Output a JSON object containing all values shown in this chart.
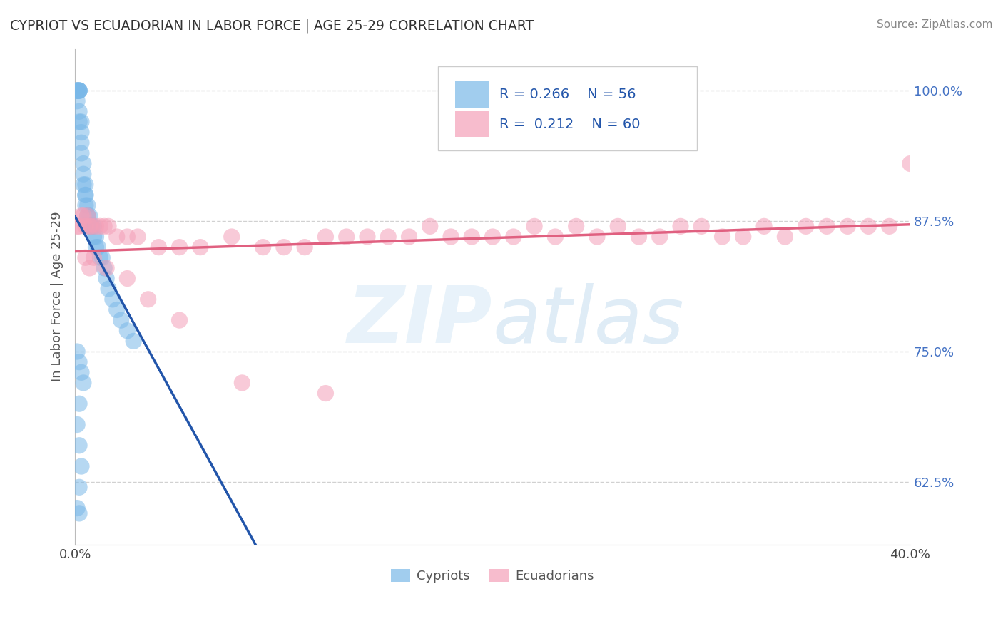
{
  "title": "CYPRIOT VS ECUADORIAN IN LABOR FORCE | AGE 25-29 CORRELATION CHART",
  "source_text": "Source: ZipAtlas.com",
  "ylabel": "In Labor Force | Age 25-29",
  "xlim": [
    0.0,
    0.4
  ],
  "ylim": [
    0.565,
    1.04
  ],
  "xtick_labels": [
    "0.0%",
    "40.0%"
  ],
  "xtick_vals": [
    0.0,
    0.4
  ],
  "ytick_labels": [
    "62.5%",
    "75.0%",
    "87.5%",
    "100.0%"
  ],
  "ytick_vals": [
    0.625,
    0.75,
    0.875,
    1.0
  ],
  "blue_color": "#7ab8e8",
  "pink_color": "#f4a0b8",
  "blue_line_color": "#2255aa",
  "pink_line_color": "#e06080",
  "blue_R": 0.266,
  "blue_N": 56,
  "pink_R": 0.212,
  "pink_N": 60,
  "blue_scatter_x": [
    0.001,
    0.001,
    0.001,
    0.001,
    0.001,
    0.002,
    0.002,
    0.002,
    0.002,
    0.002,
    0.002,
    0.003,
    0.003,
    0.003,
    0.003,
    0.004,
    0.004,
    0.004,
    0.005,
    0.005,
    0.005,
    0.005,
    0.006,
    0.006,
    0.006,
    0.007,
    0.007,
    0.007,
    0.008,
    0.008,
    0.009,
    0.009,
    0.01,
    0.01,
    0.011,
    0.012,
    0.013,
    0.014,
    0.015,
    0.016,
    0.018,
    0.02,
    0.022,
    0.025,
    0.028,
    0.001,
    0.002,
    0.003,
    0.004,
    0.002,
    0.001,
    0.002,
    0.003,
    0.002,
    0.001,
    0.002
  ],
  "blue_scatter_y": [
    1.0,
    1.0,
    1.0,
    1.0,
    0.99,
    1.0,
    1.0,
    1.0,
    1.0,
    0.98,
    0.97,
    0.97,
    0.96,
    0.95,
    0.94,
    0.93,
    0.92,
    0.91,
    0.91,
    0.9,
    0.9,
    0.89,
    0.89,
    0.88,
    0.88,
    0.88,
    0.87,
    0.87,
    0.87,
    0.87,
    0.87,
    0.86,
    0.86,
    0.85,
    0.85,
    0.84,
    0.84,
    0.83,
    0.82,
    0.81,
    0.8,
    0.79,
    0.78,
    0.77,
    0.76,
    0.75,
    0.74,
    0.73,
    0.72,
    0.7,
    0.68,
    0.66,
    0.64,
    0.62,
    0.6,
    0.595
  ],
  "pink_scatter_x": [
    0.001,
    0.002,
    0.003,
    0.004,
    0.005,
    0.006,
    0.007,
    0.008,
    0.01,
    0.012,
    0.014,
    0.016,
    0.02,
    0.025,
    0.03,
    0.04,
    0.05,
    0.06,
    0.075,
    0.09,
    0.1,
    0.11,
    0.12,
    0.13,
    0.14,
    0.15,
    0.16,
    0.17,
    0.18,
    0.19,
    0.2,
    0.21,
    0.22,
    0.23,
    0.24,
    0.25,
    0.26,
    0.27,
    0.28,
    0.29,
    0.3,
    0.31,
    0.32,
    0.33,
    0.34,
    0.35,
    0.36,
    0.37,
    0.38,
    0.39,
    0.4,
    0.005,
    0.007,
    0.009,
    0.015,
    0.025,
    0.035,
    0.05,
    0.08,
    0.12
  ],
  "pink_scatter_y": [
    0.87,
    0.87,
    0.88,
    0.88,
    0.87,
    0.88,
    0.87,
    0.87,
    0.87,
    0.87,
    0.87,
    0.87,
    0.86,
    0.86,
    0.86,
    0.85,
    0.85,
    0.85,
    0.86,
    0.85,
    0.85,
    0.85,
    0.86,
    0.86,
    0.86,
    0.86,
    0.86,
    0.87,
    0.86,
    0.86,
    0.86,
    0.86,
    0.87,
    0.86,
    0.87,
    0.86,
    0.87,
    0.86,
    0.86,
    0.87,
    0.87,
    0.86,
    0.86,
    0.87,
    0.86,
    0.87,
    0.87,
    0.87,
    0.87,
    0.87,
    0.93,
    0.84,
    0.83,
    0.84,
    0.83,
    0.82,
    0.8,
    0.78,
    0.72,
    0.71
  ]
}
